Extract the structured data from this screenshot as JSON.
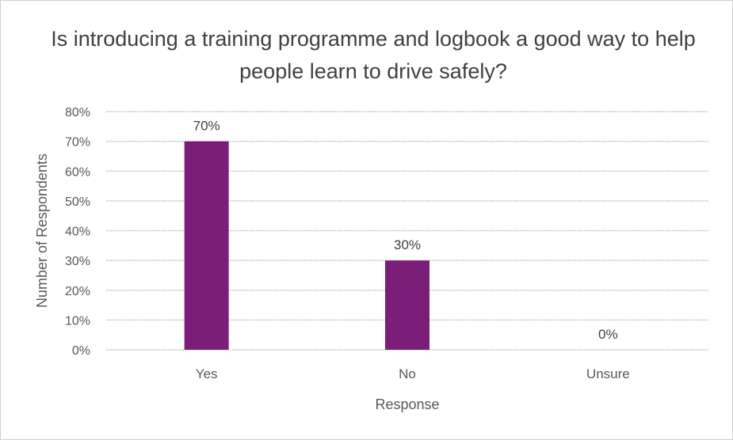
{
  "chart_data": {
    "type": "bar",
    "title": "Is introducing a training programme and logbook a good way to help people learn to drive safely?",
    "xlabel": "Response",
    "ylabel": "Number of Respondents",
    "categories": [
      "Yes",
      "No",
      "Unsure"
    ],
    "values": [
      70,
      30,
      0
    ],
    "data_labels": [
      "70%",
      "30%",
      "0%"
    ],
    "ylim": [
      0,
      80
    ],
    "y_ticks": [
      "0%",
      "10%",
      "20%",
      "30%",
      "40%",
      "50%",
      "60%",
      "70%",
      "80%"
    ],
    "grid": true,
    "legend": "none",
    "colors": {
      "bar": "#7B1E7A",
      "grid": "#c8c8c8",
      "text": "#595959"
    }
  }
}
